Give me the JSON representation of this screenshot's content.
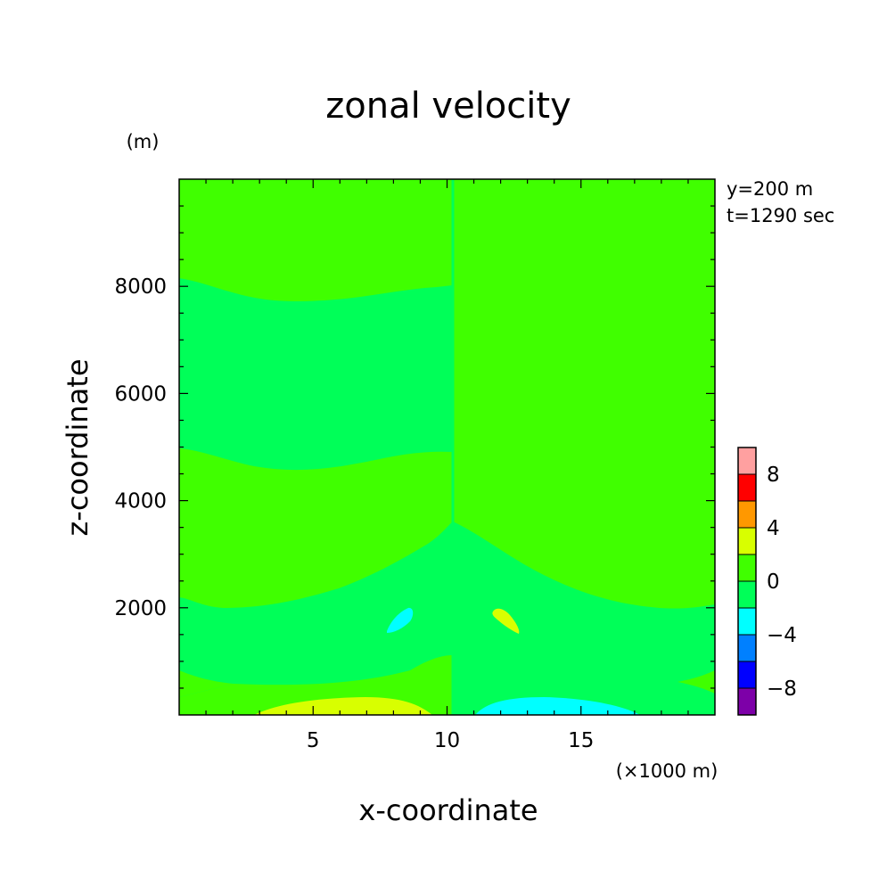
{
  "chart_data": {
    "type": "heatmap",
    "title": "zonal velocity",
    "xlabel": "x-coordinate",
    "ylabel": "z-coordinate",
    "x_unit_note": "(×1000 m)",
    "y_unit_note": "(m)",
    "annotations": [
      "y=200 m",
      "t=1290 sec"
    ],
    "xlim": [
      0,
      20
    ],
    "ylim": [
      0,
      10000
    ],
    "x_tick_labels": [
      "5",
      "10",
      "15"
    ],
    "x_ticks": [
      5,
      10,
      15
    ],
    "y_tick_labels": [
      "2000",
      "4000",
      "6000",
      "8000"
    ],
    "y_ticks": [
      2000,
      4000,
      6000,
      8000
    ],
    "colorbar": {
      "levels": [
        -10,
        -8,
        -6,
        -4,
        -2,
        0,
        2,
        4,
        6,
        8,
        10
      ],
      "colors": [
        "#7d00a8",
        "#0000ff",
        "#0080ff",
        "#00ffff",
        "#00ff58",
        "#40ff00",
        "#d8ff00",
        "#ff9800",
        "#ff0000",
        "#ffa0a0"
      ],
      "tick_labels": [
        "-8",
        "-4",
        "0",
        "4",
        "8"
      ],
      "tick_values": [
        -8,
        -4,
        0,
        4,
        8
      ]
    },
    "background_color": "#40ff00",
    "regions": [
      {
        "name": "lower-left-mode-1",
        "color": "#00ff58",
        "outline": [
          [
            0,
            0
          ],
          [
            10.1,
            0
          ],
          [
            10.1,
            10000
          ],
          [
            0,
            10000
          ]
        ]
      },
      {
        "name": "dummy",
        "color": "#40ff00",
        "outline": []
      }
    ]
  }
}
